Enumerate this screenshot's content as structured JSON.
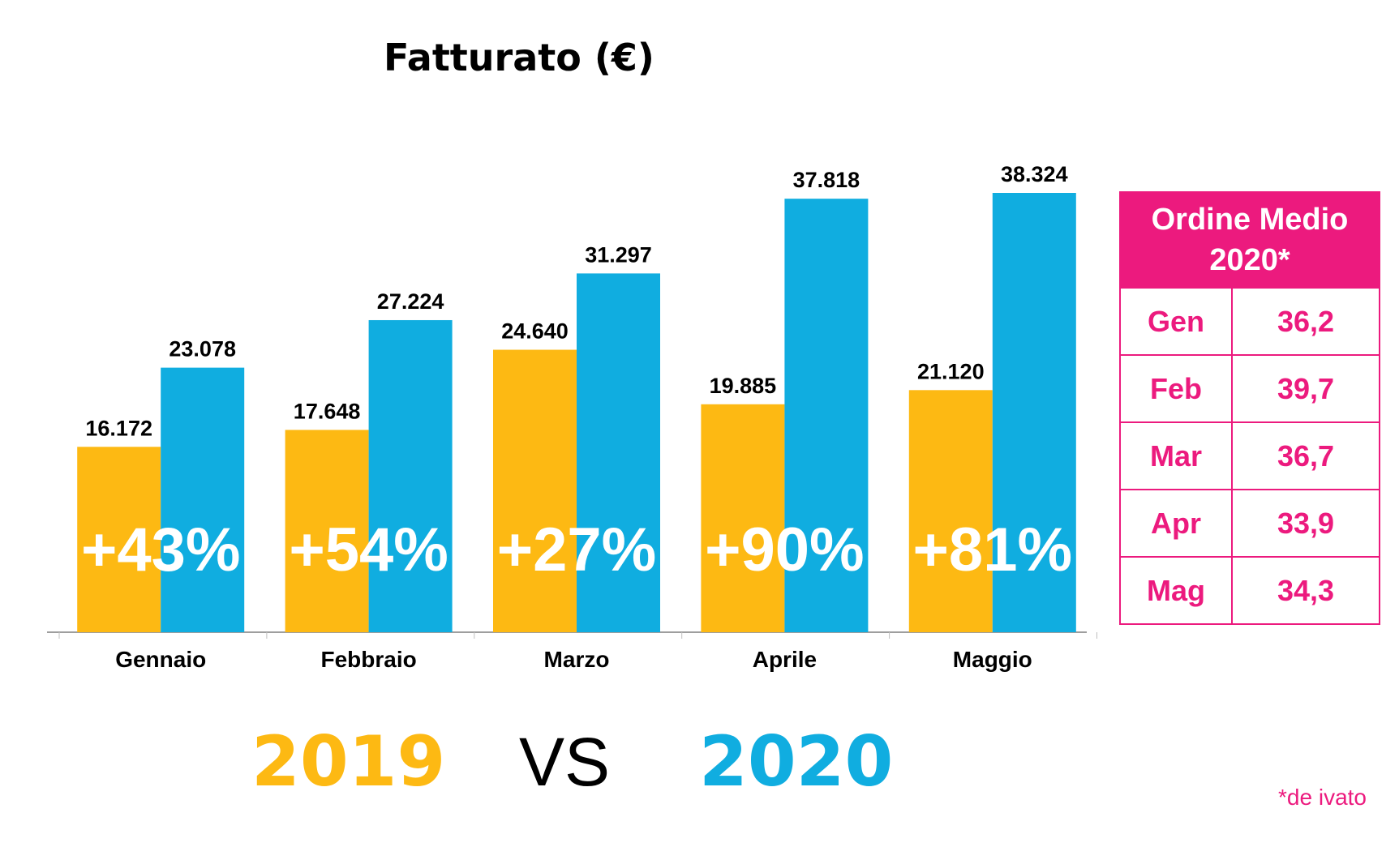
{
  "chart_data": {
    "type": "bar",
    "title": "Fatturato (€)",
    "categories": [
      "Gennaio",
      "Febbraio",
      "Marzo",
      "Aprile",
      "Maggio"
    ],
    "series": [
      {
        "name": "2019",
        "color": "#fdb913",
        "values": [
          16172,
          17648,
          24640,
          19885,
          21120
        ],
        "labels": [
          "16.172",
          "17.648",
          "24.640",
          "19.885",
          "21.120"
        ]
      },
      {
        "name": "2020",
        "color": "#10ade0",
        "values": [
          23078,
          27224,
          31297,
          37818,
          38324
        ],
        "labels": [
          "23.078",
          "27.224",
          "31.297",
          "37.818",
          "38.324"
        ]
      }
    ],
    "growth_labels": [
      "+43%",
      "+54%",
      "+27%",
      "+90%",
      "+81%"
    ],
    "ylim": [
      0,
      40000
    ],
    "grid": false,
    "legend": {
      "position": "bottom",
      "left": "2019",
      "separator": "VS",
      "right": "2020"
    }
  },
  "side_table": {
    "header": "Ordine Medio 2020*",
    "rows": [
      {
        "month": "Gen",
        "value": "36,2"
      },
      {
        "month": "Feb",
        "value": "39,7"
      },
      {
        "month": "Mar",
        "value": "36,7"
      },
      {
        "month": "Apr",
        "value": "33,9"
      },
      {
        "month": "Mag",
        "value": "34,3"
      }
    ],
    "color": "#ec1a7e"
  },
  "footnote": "*de ivato"
}
